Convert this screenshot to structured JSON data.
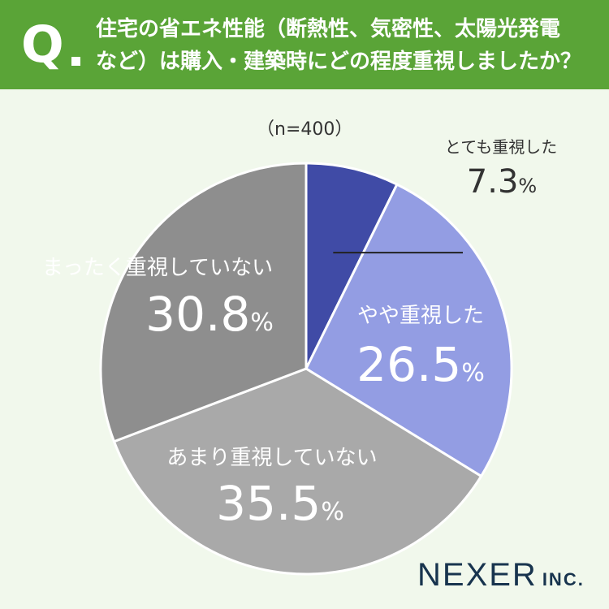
{
  "question": {
    "mark": "Q",
    "line1": "住宅の省エネ性能（断熱性、気密性、太陽光発電",
    "line2": "など）は購入・建築時にどの程度重視しましたか？"
  },
  "sample_size": "（n=400）",
  "chart_data": {
    "type": "pie",
    "title": "住宅の省エネ性能（断熱性、気密性、太陽光発電など）は購入・建築時にどの程度重視しましたか？",
    "n": 400,
    "slices": [
      {
        "label": "とても重視した",
        "value": 7.3,
        "value_text": "7.3",
        "color": "#404ba6"
      },
      {
        "label": "やや重視した",
        "value": 26.5,
        "value_text": "26.5",
        "color": "#939de3"
      },
      {
        "label": "あまり重視していない",
        "value": 35.5,
        "value_text": "35.5",
        "color": "#a9a9a9"
      },
      {
        "label": "まったく重視していない",
        "value": 30.8,
        "value_text": "30.8",
        "color": "#8e8e8e"
      }
    ],
    "percent_sign": "%",
    "legend": "none"
  },
  "logo": {
    "main": "NEXER",
    "sub": "INC."
  }
}
